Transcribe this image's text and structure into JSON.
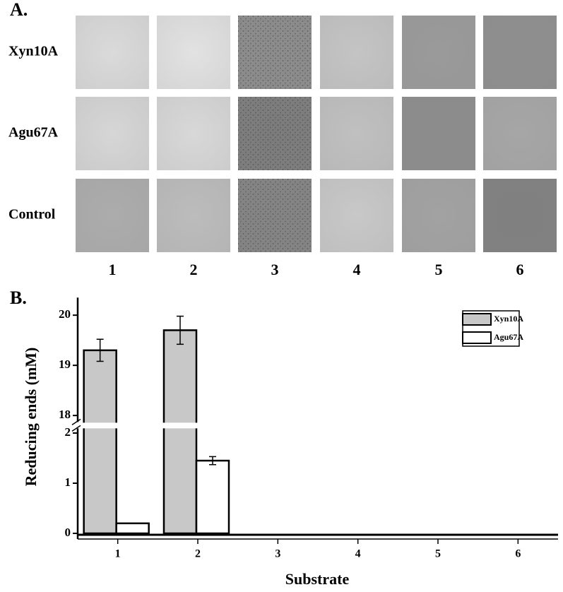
{
  "panel_a": {
    "label": "A.",
    "row_labels": [
      "Xyn10A",
      "Agu67A",
      "Control"
    ],
    "column_labels": [
      "1",
      "2",
      "3",
      "4",
      "5",
      "6"
    ]
  },
  "chart_data": {
    "type": "bar",
    "panel_label": "B.",
    "x_label": "Substrate",
    "y_label": "Reducing ends (mM)",
    "categories": [
      "1",
      "2",
      "3",
      "4",
      "5",
      "6"
    ],
    "series": [
      {
        "name": "Xyn10A",
        "color": "#c8c8c8",
        "values": [
          19.3,
          19.7,
          0,
          0,
          0,
          0
        ],
        "errors": [
          0.22,
          0.28,
          null,
          null,
          null,
          null
        ]
      },
      {
        "name": "Agu67A",
        "color": "#ffffff",
        "values": [
          0.2,
          1.45,
          0,
          0,
          0,
          0
        ],
        "errors": [
          null,
          0.08,
          null,
          null,
          null,
          null
        ]
      }
    ],
    "ylim": [
      0,
      20.35
    ],
    "y_break": [
      2.15,
      17.8
    ],
    "yticks": [
      0,
      1,
      2,
      18,
      19,
      20
    ],
    "legend": "upper right"
  }
}
